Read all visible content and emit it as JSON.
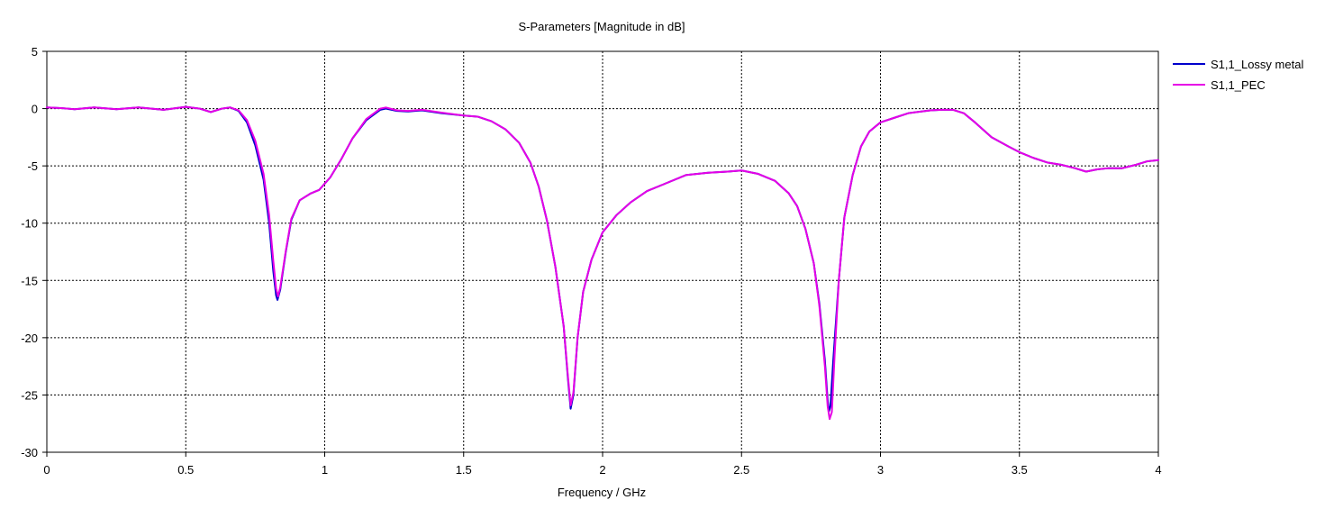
{
  "chart_data": {
    "type": "line",
    "title": "S-Parameters [Magnitude in dB]",
    "xlabel": "Frequency / GHz",
    "ylabel": "",
    "xlim": [
      0,
      4
    ],
    "ylim": [
      -30,
      5
    ],
    "x_ticks": [
      0,
      0.5,
      1,
      1.5,
      2,
      2.5,
      3,
      3.5,
      4
    ],
    "x_tick_labels": [
      "0",
      "0.5",
      "1",
      "1.5",
      "2",
      "2.5",
      "3",
      "3.5",
      "4"
    ],
    "y_ticks": [
      5,
      0,
      -5,
      -10,
      -15,
      -20,
      -25,
      -30
    ],
    "y_tick_labels": [
      "5",
      "0",
      "-5",
      "-10",
      "-15",
      "-20",
      "-25",
      "-30"
    ],
    "grid": true,
    "legend_position": "right",
    "series": [
      {
        "name": "S1,1_Lossy metal",
        "color": "#0000cc",
        "points": [
          [
            0,
            0.1
          ],
          [
            0.05,
            0.05
          ],
          [
            0.1,
            -0.05
          ],
          [
            0.17,
            0.1
          ],
          [
            0.25,
            -0.05
          ],
          [
            0.33,
            0.1
          ],
          [
            0.42,
            -0.1
          ],
          [
            0.5,
            0.15
          ],
          [
            0.55,
            0.0
          ],
          [
            0.59,
            -0.3
          ],
          [
            0.63,
            0.0
          ],
          [
            0.66,
            0.1
          ],
          [
            0.69,
            -0.2
          ],
          [
            0.72,
            -1.2
          ],
          [
            0.75,
            -3.2
          ],
          [
            0.78,
            -6.2
          ],
          [
            0.8,
            -10.0
          ],
          [
            0.815,
            -14.2
          ],
          [
            0.825,
            -16.3
          ],
          [
            0.83,
            -16.7
          ],
          [
            0.84,
            -15.8
          ],
          [
            0.86,
            -12.5
          ],
          [
            0.88,
            -9.7
          ],
          [
            0.91,
            -8.0
          ],
          [
            0.95,
            -7.4
          ],
          [
            0.98,
            -7.1
          ],
          [
            1.02,
            -6.0
          ],
          [
            1.06,
            -4.4
          ],
          [
            1.1,
            -2.6
          ],
          [
            1.15,
            -1.0
          ],
          [
            1.2,
            -0.1
          ],
          [
            1.22,
            0.0
          ],
          [
            1.26,
            -0.2
          ],
          [
            1.3,
            -0.25
          ],
          [
            1.35,
            -0.15
          ],
          [
            1.42,
            -0.4
          ],
          [
            1.5,
            -0.6
          ],
          [
            1.55,
            -0.7
          ],
          [
            1.6,
            -1.1
          ],
          [
            1.65,
            -1.8
          ],
          [
            1.7,
            -3.0
          ],
          [
            1.74,
            -4.7
          ],
          [
            1.77,
            -6.8
          ],
          [
            1.8,
            -9.8
          ],
          [
            1.83,
            -13.8
          ],
          [
            1.86,
            -19.0
          ],
          [
            1.875,
            -23.5
          ],
          [
            1.885,
            -26.2
          ],
          [
            1.895,
            -25.0
          ],
          [
            1.91,
            -20.0
          ],
          [
            1.93,
            -16.0
          ],
          [
            1.96,
            -13.2
          ],
          [
            2.0,
            -10.8
          ],
          [
            2.05,
            -9.3
          ],
          [
            2.1,
            -8.2
          ],
          [
            2.16,
            -7.2
          ],
          [
            2.22,
            -6.6
          ],
          [
            2.3,
            -5.8
          ],
          [
            2.38,
            -5.6
          ],
          [
            2.45,
            -5.5
          ],
          [
            2.5,
            -5.4
          ],
          [
            2.56,
            -5.7
          ],
          [
            2.62,
            -6.3
          ],
          [
            2.67,
            -7.4
          ],
          [
            2.7,
            -8.5
          ],
          [
            2.73,
            -10.5
          ],
          [
            2.76,
            -13.5
          ],
          [
            2.78,
            -17.0
          ],
          [
            2.8,
            -22.0
          ],
          [
            2.81,
            -25.5
          ],
          [
            2.815,
            -26.4
          ],
          [
            2.82,
            -26.0
          ],
          [
            2.83,
            -22.0
          ],
          [
            2.85,
            -15.0
          ],
          [
            2.87,
            -9.5
          ],
          [
            2.9,
            -5.8
          ],
          [
            2.93,
            -3.3
          ],
          [
            2.96,
            -2.0
          ],
          [
            3.0,
            -1.2
          ],
          [
            3.05,
            -0.8
          ],
          [
            3.1,
            -0.4
          ],
          [
            3.18,
            -0.15
          ],
          [
            3.22,
            -0.1
          ],
          [
            3.26,
            -0.1
          ],
          [
            3.3,
            -0.4
          ],
          [
            3.34,
            -1.2
          ],
          [
            3.4,
            -2.5
          ],
          [
            3.46,
            -3.3
          ],
          [
            3.5,
            -3.8
          ],
          [
            3.55,
            -4.3
          ],
          [
            3.6,
            -4.7
          ],
          [
            3.65,
            -4.9
          ],
          [
            3.7,
            -5.2
          ],
          [
            3.74,
            -5.5
          ],
          [
            3.78,
            -5.3
          ],
          [
            3.82,
            -5.2
          ],
          [
            3.87,
            -5.2
          ],
          [
            3.92,
            -4.9
          ],
          [
            3.96,
            -4.6
          ],
          [
            4.0,
            -4.5
          ]
        ]
      },
      {
        "name": "S1,1_PEC",
        "color": "#e600e6",
        "points": [
          [
            0,
            0.1
          ],
          [
            0.05,
            0.05
          ],
          [
            0.1,
            -0.05
          ],
          [
            0.17,
            0.1
          ],
          [
            0.25,
            -0.05
          ],
          [
            0.33,
            0.1
          ],
          [
            0.42,
            -0.1
          ],
          [
            0.5,
            0.15
          ],
          [
            0.55,
            0.0
          ],
          [
            0.59,
            -0.3
          ],
          [
            0.63,
            0.0
          ],
          [
            0.66,
            0.1
          ],
          [
            0.69,
            -0.15
          ],
          [
            0.72,
            -1.0
          ],
          [
            0.75,
            -2.8
          ],
          [
            0.78,
            -5.7
          ],
          [
            0.8,
            -9.3
          ],
          [
            0.815,
            -13.3
          ],
          [
            0.825,
            -15.7
          ],
          [
            0.832,
            -16.4
          ],
          [
            0.84,
            -15.6
          ],
          [
            0.86,
            -12.4
          ],
          [
            0.88,
            -9.6
          ],
          [
            0.91,
            -8.0
          ],
          [
            0.95,
            -7.4
          ],
          [
            0.98,
            -7.1
          ],
          [
            1.02,
            -6.0
          ],
          [
            1.06,
            -4.4
          ],
          [
            1.1,
            -2.6
          ],
          [
            1.15,
            -0.9
          ],
          [
            1.2,
            0.0
          ],
          [
            1.22,
            0.1
          ],
          [
            1.26,
            -0.15
          ],
          [
            1.3,
            -0.2
          ],
          [
            1.35,
            -0.1
          ],
          [
            1.42,
            -0.35
          ],
          [
            1.5,
            -0.6
          ],
          [
            1.55,
            -0.7
          ],
          [
            1.6,
            -1.1
          ],
          [
            1.65,
            -1.8
          ],
          [
            1.7,
            -3.0
          ],
          [
            1.74,
            -4.7
          ],
          [
            1.77,
            -6.8
          ],
          [
            1.8,
            -9.8
          ],
          [
            1.83,
            -13.8
          ],
          [
            1.86,
            -19.0
          ],
          [
            1.875,
            -23.3
          ],
          [
            1.885,
            -25.9
          ],
          [
            1.895,
            -24.8
          ],
          [
            1.91,
            -20.0
          ],
          [
            1.93,
            -16.0
          ],
          [
            1.96,
            -13.2
          ],
          [
            2.0,
            -10.8
          ],
          [
            2.05,
            -9.3
          ],
          [
            2.1,
            -8.2
          ],
          [
            2.16,
            -7.2
          ],
          [
            2.22,
            -6.6
          ],
          [
            2.3,
            -5.8
          ],
          [
            2.38,
            -5.6
          ],
          [
            2.45,
            -5.5
          ],
          [
            2.5,
            -5.4
          ],
          [
            2.56,
            -5.7
          ],
          [
            2.62,
            -6.3
          ],
          [
            2.67,
            -7.4
          ],
          [
            2.7,
            -8.5
          ],
          [
            2.73,
            -10.5
          ],
          [
            2.76,
            -13.5
          ],
          [
            2.78,
            -17.2
          ],
          [
            2.8,
            -22.5
          ],
          [
            2.81,
            -26.0
          ],
          [
            2.817,
            -27.1
          ],
          [
            2.825,
            -26.5
          ],
          [
            2.835,
            -21.5
          ],
          [
            2.85,
            -15.0
          ],
          [
            2.87,
            -9.5
          ],
          [
            2.9,
            -5.8
          ],
          [
            2.93,
            -3.3
          ],
          [
            2.96,
            -2.0
          ],
          [
            3.0,
            -1.2
          ],
          [
            3.05,
            -0.8
          ],
          [
            3.1,
            -0.4
          ],
          [
            3.18,
            -0.15
          ],
          [
            3.22,
            -0.1
          ],
          [
            3.26,
            -0.1
          ],
          [
            3.3,
            -0.4
          ],
          [
            3.34,
            -1.2
          ],
          [
            3.4,
            -2.5
          ],
          [
            3.46,
            -3.3
          ],
          [
            3.5,
            -3.8
          ],
          [
            3.55,
            -4.3
          ],
          [
            3.6,
            -4.7
          ],
          [
            3.65,
            -4.9
          ],
          [
            3.7,
            -5.2
          ],
          [
            3.74,
            -5.5
          ],
          [
            3.78,
            -5.3
          ],
          [
            3.82,
            -5.2
          ],
          [
            3.87,
            -5.2
          ],
          [
            3.92,
            -4.9
          ],
          [
            3.96,
            -4.6
          ],
          [
            4.0,
            -4.5
          ]
        ]
      }
    ]
  }
}
